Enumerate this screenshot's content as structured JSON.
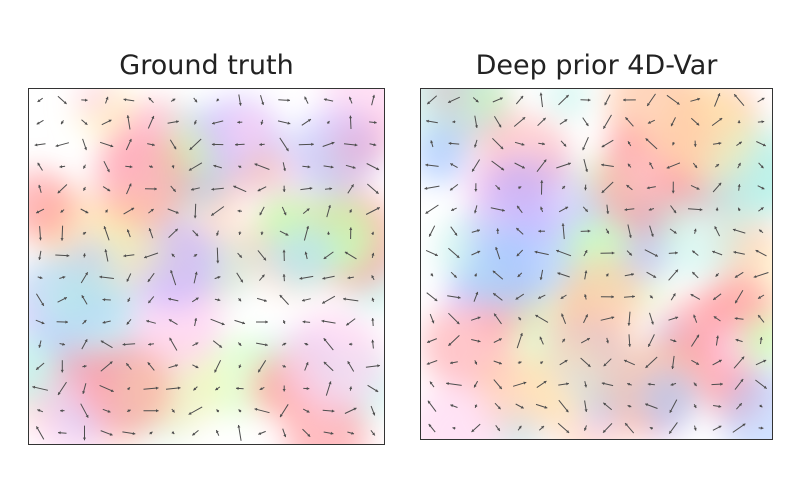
{
  "chart_data": [
    {
      "type": "heatmap",
      "variant": "vector-field-over-color-field",
      "title": "Ground truth",
      "xlabel": "",
      "ylabel": "",
      "axes_ticks": false,
      "grid": false,
      "legend": "none",
      "field": "random-smooth",
      "seed": 7
    },
    {
      "type": "heatmap",
      "variant": "vector-field-over-color-field",
      "title": "Deep prior 4D-Var",
      "xlabel": "",
      "ylabel": "",
      "axes_ticks": false,
      "grid": false,
      "legend": "none",
      "field": "random-smooth",
      "seed": 11
    }
  ],
  "colors": {
    "frame": "#333333",
    "arrow": "#4d4d4d",
    "title": "#222222",
    "palette": [
      "#ff9aa0",
      "#ffd0f0",
      "#c8b8ff",
      "#a8c8ff",
      "#b8f0e8",
      "#c8ffb0",
      "#fff2b0",
      "#ffc8a8"
    ]
  }
}
